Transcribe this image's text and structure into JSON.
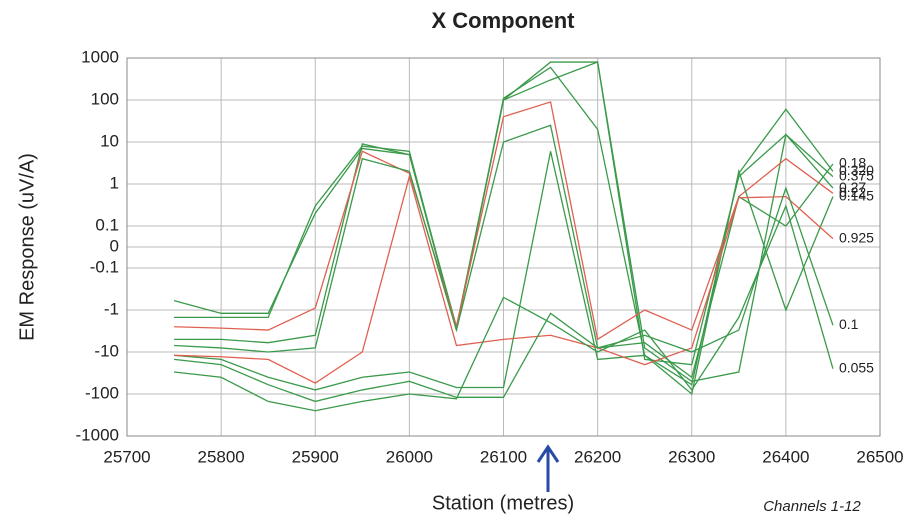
{
  "chart_data": {
    "type": "line",
    "title": "X Component",
    "x_label": "Station (metres)",
    "y_label": "EM Response (uV/A)",
    "note": "Channels 1-12",
    "yscale": "symlog",
    "grid": true,
    "x": [
      25750,
      25800,
      25850,
      25900,
      25950,
      26000,
      26050,
      26100,
      26150,
      26200,
      26250,
      26300,
      26350,
      26400,
      26450
    ],
    "xlim": [
      25700,
      26500
    ],
    "xticks": [
      25700,
      25800,
      25900,
      26000,
      26100,
      26200,
      26300,
      26400,
      26500
    ],
    "ylim": [
      -1000,
      1000
    ],
    "yticks": [
      1000,
      100,
      10,
      1,
      0.1,
      0,
      -0.1,
      -1,
      -10,
      -100,
      -1000
    ],
    "series": [
      {
        "name": "0.375",
        "color": "#3a9a4a",
        "values": [
          -0.6,
          -1.2,
          -1.2,
          0.2,
          7,
          5,
          -2.5,
          100,
          800,
          800,
          -15,
          -20,
          1.5,
          15,
          1.5
        ]
      },
      {
        "name": "0.320",
        "color": "#3a9a4a",
        "values": [
          -1.5,
          -1.5,
          -1.5,
          0.3,
          8,
          6,
          -3,
          110,
          600,
          20,
          -12,
          -60,
          1.8,
          60,
          2
        ]
      },
      {
        "name": "0.27",
        "color": "#3a9a4a",
        "values": [
          -5,
          -5,
          -6,
          -4,
          9,
          5,
          -3,
          100,
          300,
          800,
          -8,
          -50,
          -30,
          15,
          0.8
        ]
      },
      {
        "name": "0.22",
        "color": "#e06050",
        "values": [
          -2.5,
          -2.7,
          -3,
          -0.9,
          6,
          1.8,
          -2.5,
          40,
          90,
          -5,
          -1,
          -3,
          0.5,
          4,
          0.6
        ]
      },
      {
        "name": "0.18",
        "color": "#3a9a4a",
        "values": [
          -7,
          -8,
          -10,
          -8,
          4,
          2,
          -3,
          10,
          25,
          -8,
          -6,
          -40,
          0.5,
          0.1,
          3
        ]
      },
      {
        "name": "0.145",
        "color": "#3a9a4a",
        "values": [
          -12,
          -15,
          -40,
          -80,
          -40,
          -30,
          -70,
          -70,
          6,
          -15,
          -12,
          -100,
          2,
          -1,
          0.5
        ]
      },
      {
        "name": "0.925",
        "color": "#e06050",
        "values": [
          -12,
          -13,
          -15,
          -55,
          -10,
          1.5,
          -7,
          -5,
          -4,
          -8,
          -20,
          -8,
          0.47,
          0.5,
          0.04
        ]
      },
      {
        "name": "0.1",
        "color": "#3a9a4a",
        "values": [
          -15,
          -20,
          -60,
          -150,
          -80,
          -50,
          -120,
          -120,
          -1.2,
          -8,
          -4,
          -10,
          -3,
          0.8,
          -2.3
        ]
      },
      {
        "name": "0.055",
        "color": "#3a9a4a",
        "values": [
          -30,
          -40,
          -150,
          -250,
          -150,
          -100,
          -130,
          -0.5,
          -2,
          -10,
          -3,
          -80,
          -1.5,
          0.3,
          -25
        ]
      }
    ]
  }
}
